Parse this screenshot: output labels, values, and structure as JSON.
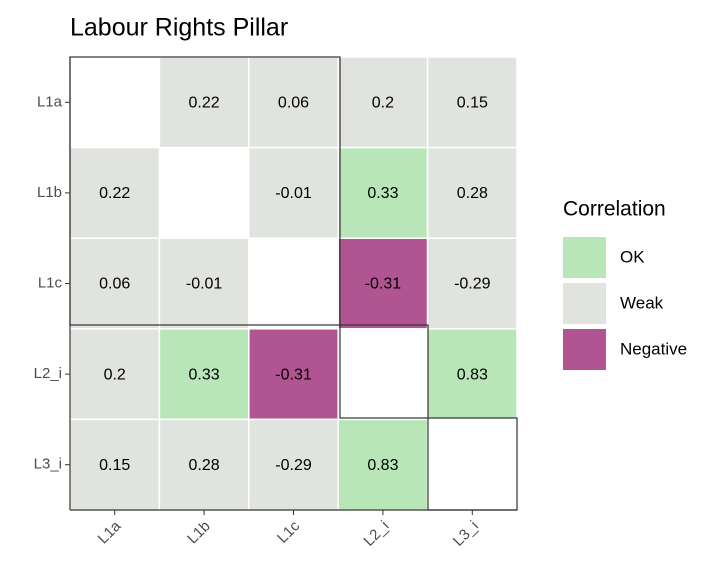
{
  "chart_data": {
    "type": "heatmap",
    "title": "Labour Rights Pillar",
    "x_categories": [
      "L1a",
      "L1b",
      "L1c",
      "L2_i",
      "L3_i"
    ],
    "y_categories": [
      "L1a",
      "L1b",
      "L1c",
      "L2_i",
      "L3_i"
    ],
    "values": [
      [
        null,
        0.22,
        0.06,
        0.2,
        0.15
      ],
      [
        0.22,
        null,
        -0.01,
        0.33,
        0.28
      ],
      [
        0.06,
        -0.01,
        null,
        -0.31,
        -0.29
      ],
      [
        0.2,
        0.33,
        -0.31,
        null,
        0.83
      ],
      [
        0.15,
        0.28,
        -0.29,
        0.83,
        null
      ]
    ],
    "classes": [
      [
        null,
        "Weak",
        "Weak",
        "Weak",
        "Weak"
      ],
      [
        "Weak",
        null,
        "Weak",
        "OK",
        "Weak"
      ],
      [
        "Weak",
        "Weak",
        null,
        "Negative",
        "Weak"
      ],
      [
        "Weak",
        "OK",
        "Negative",
        null,
        "OK"
      ],
      [
        "Weak",
        "Weak",
        "Weak",
        "OK",
        null
      ]
    ],
    "legend": {
      "title": "Correlation",
      "entries": [
        {
          "name": "OK",
          "color": "#b8e6b8"
        },
        {
          "name": "Weak",
          "color": "#e0e3de"
        },
        {
          "name": "Negative",
          "color": "#b15592"
        }
      ]
    }
  }
}
